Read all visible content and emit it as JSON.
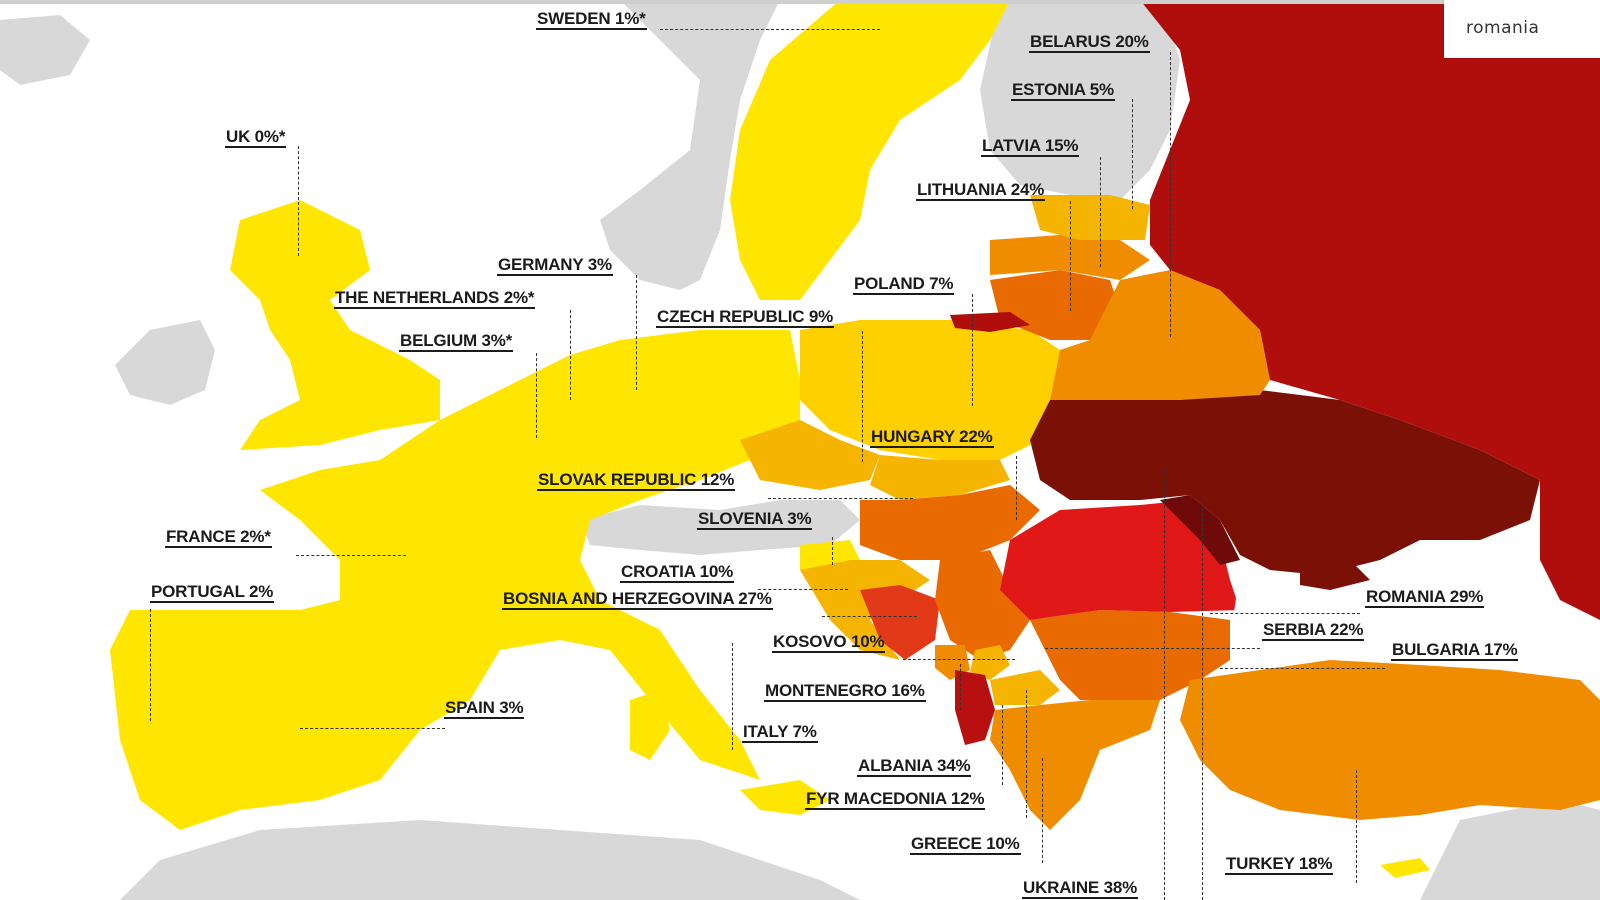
{
  "search_tag": "romania",
  "colors": {
    "sea": "#ffffff",
    "land_other": "#d6d6d6",
    "scale_0_3": "#ffe600",
    "scale_4_9": "#ffd000",
    "scale_10_14": "#f5b400",
    "scale_15_19": "#f08c00",
    "scale_20_24": "#e86a00",
    "scale_25_29": "#e01818",
    "scale_30_34": "#c41414",
    "scale_35_plus": "#7a1006",
    "russia": "#b00d0d",
    "moldova": "#6e0a0a"
  },
  "labels": {
    "sweden": "SWEDEN 1%*",
    "belarus": "BELARUS 20%",
    "estonia": "ESTONIA 5%",
    "uk": "UK 0%*",
    "latvia": "LATVIA 15%",
    "lithuania": "LITHUANIA 24%",
    "germany": "GERMANY 3%",
    "netherlands": "THE NETHERLANDS 2%*",
    "poland": "POLAND 7%",
    "czech": "CZECH REPUBLIC 9%",
    "belgium": "BELGIUM 3%*",
    "hungary": "HUNGARY 22%",
    "slovakia": "SLOVAK REPUBLIC 12%",
    "france": "FRANCE 2%*",
    "slovenia": "SLOVENIA 3%",
    "croatia": "CROATIA 10%",
    "portugal": "PORTUGAL 2%",
    "bosnia": "BOSNIA AND HERZEGOVINA 27%",
    "romania": "ROMANIA 29%",
    "serbia": "SERBIA 22%",
    "kosovo": "KOSOVO 10%",
    "bulgaria": "BULGARIA 17%",
    "montenegro": "MONTENEGRO 16%",
    "spain": "SPAIN 3%",
    "italy": "ITALY 7%",
    "albania": "ALBANIA 34%",
    "macedonia": "FYR MACEDONIA 12%",
    "greece": "GREECE 10%",
    "turkey": "TURKEY 18%",
    "ukraine": "UKRAINE 38%"
  }
}
